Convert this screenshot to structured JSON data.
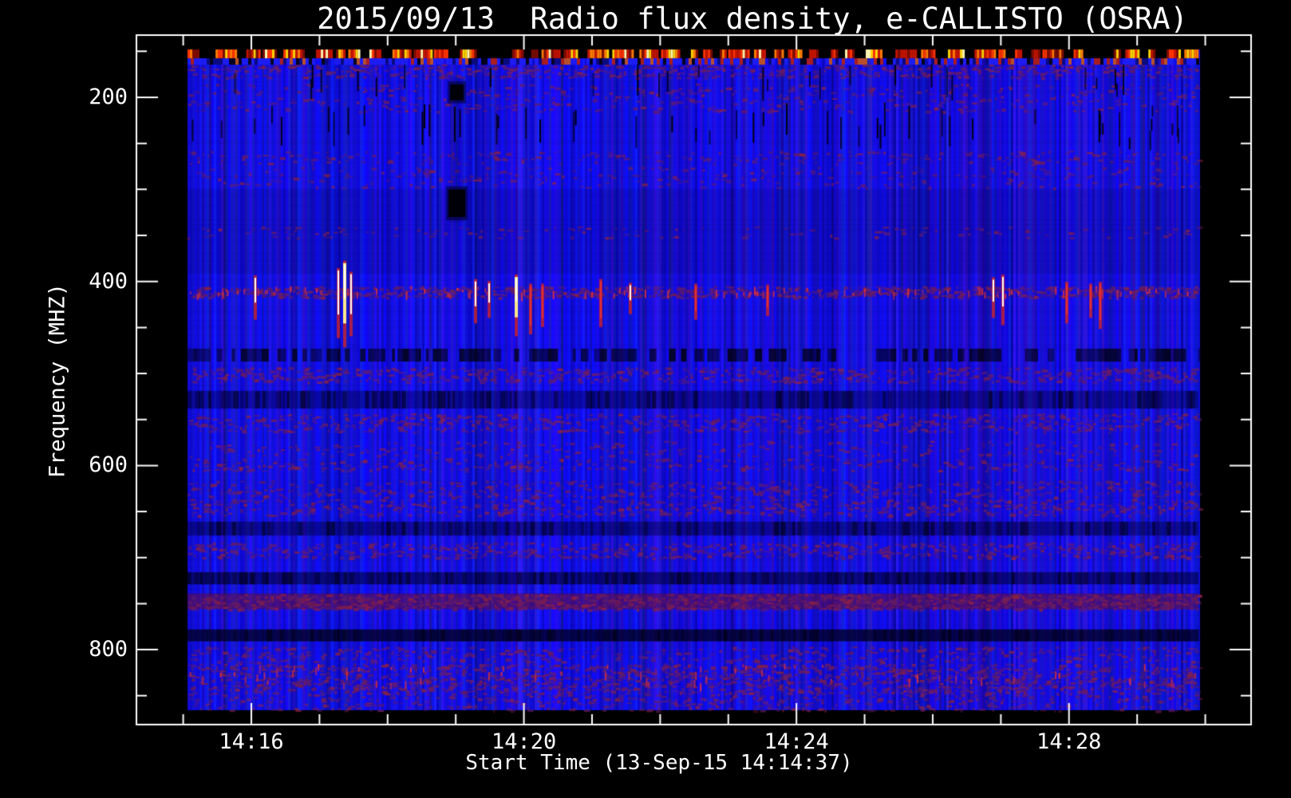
{
  "page": {
    "background": "#000000",
    "text_color": "#ffffff"
  },
  "chart_data": {
    "type": "heatmap",
    "subtype": "radio-spectrogram",
    "title": "2015/09/13  Radio flux density, e-CALLISTO (OSRA)",
    "xlabel": "Start Time (13-Sep-15 14:14:37)",
    "ylabel": "Frequency (MHZ)",
    "start_time_label": "13-Sep-15 14:14:37",
    "x_axis": {
      "units": "seconds relative to 14:16:00",
      "ticks": [
        {
          "label": "14:16",
          "t": 0
        },
        {
          "label": "14:20",
          "t": 240
        },
        {
          "label": "14:24",
          "t": 480
        },
        {
          "label": "14:28",
          "t": 720
        }
      ],
      "minor_ticks_t": [
        -60,
        60,
        120,
        180,
        300,
        360,
        420,
        540,
        600,
        660,
        780,
        840
      ],
      "range_t": [
        -101,
        880
      ]
    },
    "y_axis": {
      "ticks": [
        {
          "label": "200",
          "mhz": 200
        },
        {
          "label": "400",
          "mhz": 400
        },
        {
          "label": "600",
          "mhz": 600
        },
        {
          "label": "800",
          "mhz": 800
        }
      ],
      "minor_ticks_mhz": [
        150,
        250,
        300,
        350,
        450,
        500,
        550,
        650,
        700,
        750,
        850
      ],
      "range_mhz": [
        132,
        881
      ],
      "inverted": true
    },
    "data_extent": {
      "t": [
        -59,
        831
      ],
      "mhz": [
        148,
        866
      ]
    },
    "palette": {
      "background": "#000000",
      "frame": "#ffffff",
      "base_blue_low": "#0d0dc0",
      "base_blue_high": "#2424ff",
      "speckle": [
        "#5a1a6e",
        "#6e1a58",
        "#801f48",
        "#8e2340",
        "#6a2060"
      ],
      "bright_red": "#d8303c",
      "rfi_colors": [
        "#7a0c00",
        "#c41400",
        "#ff3300",
        "#ff7a00",
        "#ffd400",
        "#fff6b0"
      ]
    },
    "top_rfi_band": {
      "f0": 148,
      "f1": 157.5
    },
    "mixed_band": {
      "f0": 157.5,
      "f1": 164.5
    },
    "bands": [
      {
        "f0": 164,
        "f1": 178,
        "style": "speckle",
        "strength": 0.5
      },
      {
        "f0": 185,
        "f1": 215,
        "style": "speckle",
        "strength": 0.18
      },
      {
        "f0": 258,
        "f1": 272,
        "style": "speckle",
        "strength": 0.22
      },
      {
        "f0": 275,
        "f1": 298,
        "style": "speckle",
        "strength": 0.14
      },
      {
        "f0": 300,
        "f1": 392,
        "style": "overlay",
        "color": "rgba(0,0,0,0.10)"
      },
      {
        "f0": 340,
        "f1": 352,
        "style": "speckle",
        "strength": 0.13
      },
      {
        "f0": 405,
        "f1": 417,
        "style": "speckle",
        "strength": 0.85,
        "bright_count": 110
      },
      {
        "f0": 473,
        "f1": 487,
        "style": "dark_dashes"
      },
      {
        "f0": 493,
        "f1": 509,
        "style": "speckle",
        "strength": 0.5
      },
      {
        "f0": 519,
        "f1": 538,
        "style": "overlay",
        "color": "rgba(0,0,60,0.40)",
        "texture": true
      },
      {
        "f0": 543,
        "f1": 563,
        "style": "speckle",
        "strength": 0.42
      },
      {
        "f0": 573,
        "f1": 590,
        "style": "speckle",
        "strength": 0.18
      },
      {
        "f0": 592,
        "f1": 605,
        "style": "speckle",
        "strength": 0.3
      },
      {
        "f0": 616,
        "f1": 634,
        "style": "speckle",
        "strength": 0.35
      },
      {
        "f0": 636,
        "f1": 654,
        "style": "speckle",
        "strength": 0.42
      },
      {
        "f0": 661,
        "f1": 676,
        "style": "overlay",
        "color": "rgba(0,0,55,0.45)",
        "texture": true
      },
      {
        "f0": 683,
        "f1": 700,
        "style": "speckle",
        "strength": 0.5
      },
      {
        "f0": 716,
        "f1": 729,
        "style": "overlay",
        "color": "rgba(0,0,45,0.55)",
        "texture": true
      },
      {
        "f0": 739,
        "f1": 756,
        "style": "maroon"
      },
      {
        "f0": 778,
        "f1": 791,
        "style": "overlay",
        "color": "rgba(0,0,18,0.72)",
        "texture": true
      },
      {
        "f0": 796,
        "f1": 813,
        "style": "speckle",
        "strength": 0.3
      },
      {
        "f0": 815,
        "f1": 847,
        "style": "speckle",
        "strength": 0.6,
        "bright_count": 70
      },
      {
        "f0": 847,
        "f1": 866,
        "style": "speckle",
        "strength": 0.3
      }
    ],
    "black_dash_regions": [
      {
        "f0": 160,
        "f1": 205,
        "density": 0.3
      },
      {
        "f0": 205,
        "f1": 258,
        "density": 0.55
      }
    ],
    "streaks": [
      {
        "t": 3.5,
        "f0": 396,
        "f1": 432,
        "kind": "white"
      },
      {
        "t": 76.6,
        "f0": 388,
        "f1": 452,
        "kind": "white"
      },
      {
        "t": 82.2,
        "f0": 380,
        "f1": 462,
        "kind": "yellow"
      },
      {
        "t": 87.8,
        "f0": 392,
        "f1": 450,
        "kind": "white"
      },
      {
        "t": 197.4,
        "f0": 400,
        "f1": 436,
        "kind": "white"
      },
      {
        "t": 209.4,
        "f0": 402,
        "f1": 430,
        "kind": "white"
      },
      {
        "t": 233.3,
        "f0": 395,
        "f1": 450,
        "kind": "yellow"
      },
      {
        "t": 245.9,
        "f0": 405,
        "f1": 448,
        "kind": "red"
      },
      {
        "t": 256.4,
        "f0": 405,
        "f1": 440,
        "kind": "red"
      },
      {
        "t": 307.7,
        "f0": 400,
        "f1": 440,
        "kind": "red"
      },
      {
        "t": 333.7,
        "f0": 404,
        "f1": 426,
        "kind": "white"
      },
      {
        "t": 391.3,
        "f0": 405,
        "f1": 432,
        "kind": "red"
      },
      {
        "t": 454.6,
        "f0": 406,
        "f1": 428,
        "kind": "red"
      },
      {
        "t": 653.4,
        "f0": 398,
        "f1": 430,
        "kind": "white"
      },
      {
        "t": 661.8,
        "f0": 395,
        "f1": 438,
        "kind": "white"
      },
      {
        "t": 718.0,
        "f0": 403,
        "f1": 436,
        "kind": "red"
      },
      {
        "t": 739.1,
        "f0": 405,
        "f1": 430,
        "kind": "red"
      },
      {
        "t": 747.5,
        "f0": 403,
        "f1": 442,
        "kind": "red"
      }
    ],
    "blobs": [
      {
        "t": 181,
        "f0": 186,
        "f1": 203,
        "w": 17
      },
      {
        "t": 181,
        "f0": 300,
        "f1": 330,
        "w": 21
      }
    ],
    "blob_halo": {
      "t": 181,
      "f0": 178,
      "f1": 336,
      "w": 18,
      "alpha": 0.13
    }
  }
}
